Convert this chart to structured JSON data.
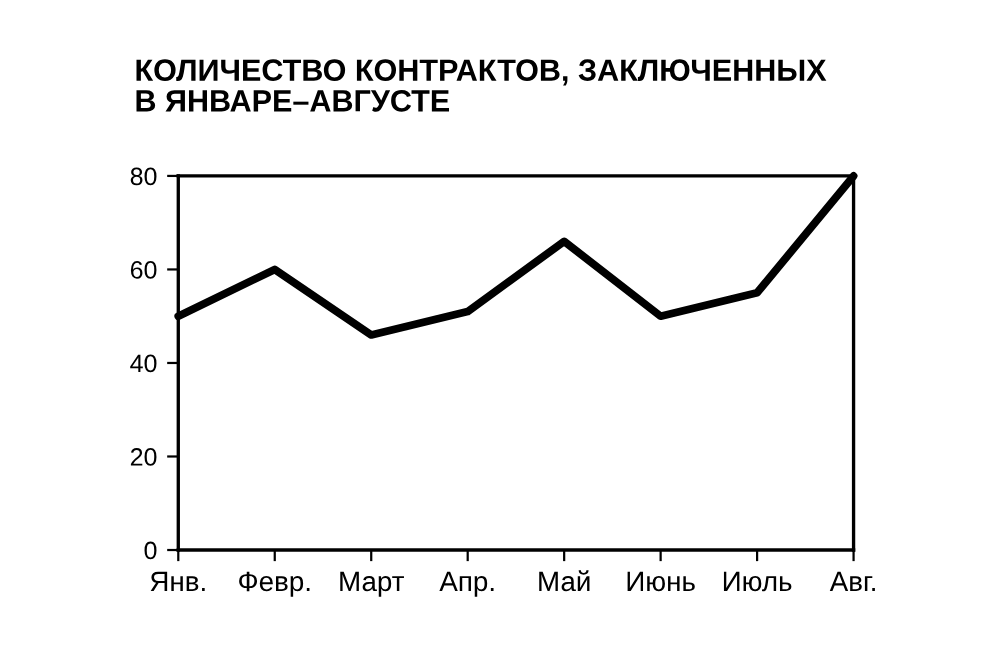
{
  "chart_data": {
    "type": "line",
    "title": "КОЛИЧЕСТВО КОНТРАКТОВ, ЗАКЛЮЧЕННЫХ\nВ ЯНВАРЕ–АВГУСТЕ",
    "categories": [
      "Янв.",
      "Февр.",
      "Март",
      "Апр.",
      "Май",
      "Июнь",
      "Июль",
      "Авг."
    ],
    "series": [
      {
        "color": "#000000",
        "values": [
          50,
          60,
          46,
          51,
          66,
          50,
          55,
          80
        ]
      }
    ],
    "ylim": [
      0,
      80
    ],
    "yticks": [
      0,
      20,
      40,
      60,
      80
    ],
    "grid": false,
    "legend": false,
    "marker": "none",
    "line_style": "solid"
  }
}
